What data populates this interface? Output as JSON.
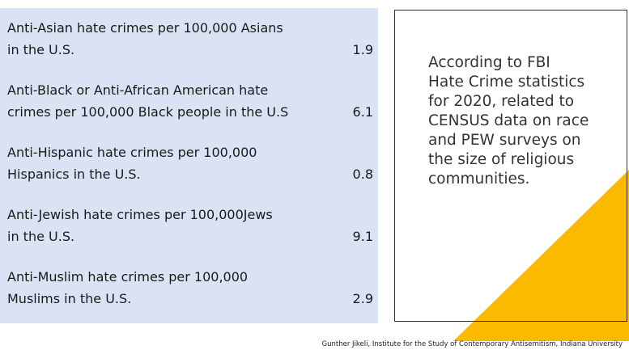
{
  "table": {
    "rows": [
      {
        "label": [
          "Anti-Asian hate crimes per 100,000 Asians",
          "in the U.S."
        ],
        "value": 1.9
      },
      {
        "label": [
          "Anti-Black or Anti-African American hate",
          "crimes per 100,000 Black people in the U.S"
        ],
        "value": 6.1
      },
      {
        "label": [
          "Anti-Hispanic hate crimes per 100,000",
          "Hispanics in the U.S."
        ],
        "value": 0.8
      },
      {
        "label": [
          "Anti-Jewish hate crimes per 100,000Jews",
          "in the U.S."
        ],
        "value": 9.1
      },
      {
        "label": [
          "Anti-Muslim hate crimes per 100,000",
          "Muslims in the U.S."
        ],
        "value": 2.9
      }
    ]
  },
  "note": {
    "lines": [
      "According to FBI",
      "Hate Crime statistics",
      "for 2020, related to",
      "CENSUS data on race",
      "and PEW surveys on",
      "the size of religious",
      "communities."
    ]
  },
  "footer": "Gunther Jikeli, Institute for the Study of Contemporary Antisemitism, Indiana University"
}
